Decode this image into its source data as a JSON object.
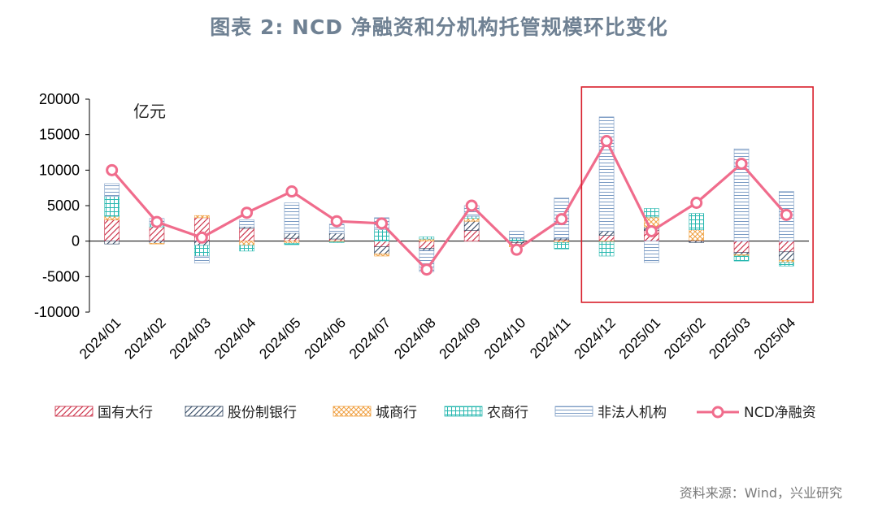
{
  "page": {
    "title": "图表 2: NCD 净融资和分机构托管规模环比变化",
    "source": "资料来源：Wind，兴业研究"
  },
  "chart_data": {
    "type": "bar",
    "unit_label": "亿元",
    "categories": [
      "2024/01",
      "2024/02",
      "2024/03",
      "2024/04",
      "2024/05",
      "2024/06",
      "2024/07",
      "2024/08",
      "2024/09",
      "2024/10",
      "2024/11",
      "2024/12",
      "2025/01",
      "2025/02",
      "2025/03",
      "2025/04"
    ],
    "ylim": [
      -10000,
      20000
    ],
    "yticks": [
      -10000,
      -5000,
      0,
      5000,
      10000,
      15000,
      20000
    ],
    "stacked": true,
    "series": [
      {
        "name": "国有大行",
        "kind": "bar",
        "color": "#c8233c",
        "pattern": "diag-red",
        "values": [
          3000,
          2000,
          3300,
          1800,
          400,
          300,
          -800,
          -1000,
          1500,
          -200,
          200,
          800,
          1500,
          100,
          -1600,
          -1500
        ]
      },
      {
        "name": "股份制银行",
        "kind": "bar",
        "color": "#2f4560",
        "pattern": "diag-navy",
        "values": [
          -400,
          -300,
          -600,
          200,
          700,
          800,
          -1000,
          -300,
          1300,
          -300,
          200,
          600,
          500,
          -200,
          -300,
          -1200
        ]
      },
      {
        "name": "城商行",
        "kind": "bar",
        "color": "#f0a040",
        "pattern": "cross-orange",
        "values": [
          500,
          -100,
          300,
          -600,
          -300,
          -100,
          -300,
          300,
          400,
          -300,
          -200,
          -100,
          1400,
          1500,
          -200,
          -300
        ]
      },
      {
        "name": "农商行",
        "kind": "bar",
        "color": "#28b8b0",
        "pattern": "grid-teal",
        "values": [
          2800,
          400,
          -1500,
          -800,
          -200,
          -100,
          1600,
          300,
          300,
          400,
          -900,
          -2000,
          1200,
          2300,
          -700,
          -500
        ]
      },
      {
        "name": "非法人机构",
        "kind": "bar",
        "color": "#7c9cc4",
        "pattern": "hlines-blue",
        "values": [
          1800,
          800,
          -1000,
          1000,
          4300,
          1300,
          1700,
          -3000,
          1500,
          1000,
          5700,
          16100,
          -3000,
          0,
          13000,
          7000
        ]
      },
      {
        "name": "NCD净融资",
        "kind": "line",
        "color": "#f06c8c",
        "values": [
          10000,
          2700,
          500,
          4000,
          7000,
          2800,
          2500,
          -4000,
          5000,
          -1200,
          3100,
          14100,
          1400,
          5400,
          10900,
          3700
        ]
      }
    ],
    "highlight": {
      "from": "2024/12",
      "to": "2025/04",
      "color": "#d81e2a"
    },
    "grid": false,
    "legend_position": "bottom"
  }
}
